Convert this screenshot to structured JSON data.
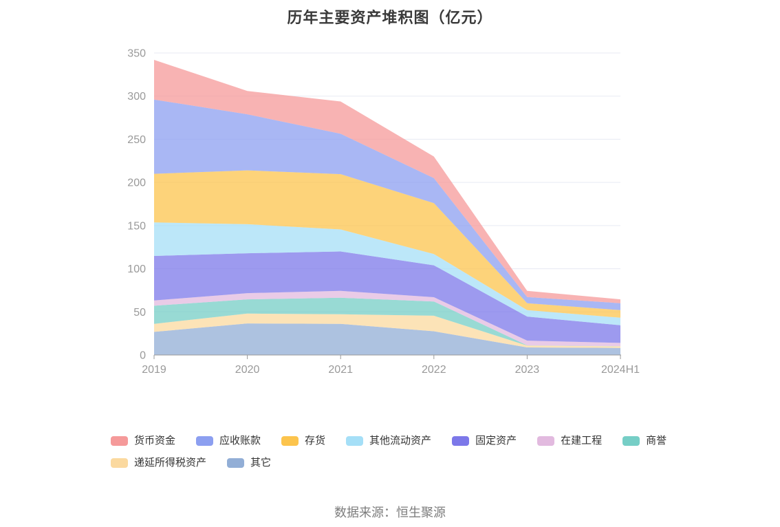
{
  "title": "历年主要资产堆积图（亿元）",
  "source_note": "数据来源：恒生聚源",
  "axis": {
    "y_min": 0,
    "y_max": 350,
    "y_interval": 50,
    "y_tick_labels": [
      "0",
      "50",
      "100",
      "150",
      "200",
      "250",
      "300",
      "350"
    ],
    "x_tick_labels": [
      "2019",
      "2020",
      "2021",
      "2022",
      "2023",
      "2024H1"
    ]
  },
  "colors": {
    "grid_line": "#e7eaf3",
    "axis_line": "#999999",
    "axis_label": "#999999",
    "title_text": "#3a3a3a",
    "legend_text": "#333333",
    "source_text": "#7d7d7d",
    "area_fill_opacity": 0.75
  },
  "chart_data": {
    "type": "area",
    "stacked": true,
    "title": "历年主要资产堆积图（亿元）",
    "x": [
      "2019",
      "2020",
      "2021",
      "2022",
      "2023",
      "2024H1"
    ],
    "xlabel": "",
    "ylabel": "",
    "ylim": [
      0,
      350
    ],
    "grid": true,
    "legend_position": "bottom",
    "series_order_note": "listed top-of-stack first; bottom of stack is last item",
    "series": [
      {
        "name": "货币资金",
        "slug": "monetary-funds",
        "color": "#f59a9a",
        "values": [
          46.0,
          27.0,
          37.4,
          25.0,
          7.2,
          4.5
        ]
      },
      {
        "name": "应收账款",
        "slug": "accounts-receivable",
        "color": "#8c9ff0",
        "values": [
          86.0,
          65.0,
          46.8,
          29.0,
          7.1,
          8.0
        ]
      },
      {
        "name": "存货",
        "slug": "inventory",
        "color": "#fcc44d",
        "values": [
          56.4,
          62.4,
          64.1,
          59.0,
          8.0,
          8.8
        ]
      },
      {
        "name": "其他流动资产",
        "slug": "other-current-assets",
        "color": "#a5dff7",
        "values": [
          38.8,
          33.7,
          25.5,
          13.0,
          7.4,
          8.7
        ]
      },
      {
        "name": "固定资产",
        "slug": "fixed-assets",
        "color": "#7c78e9",
        "values": [
          51.6,
          46.2,
          45.7,
          37.0,
          27.9,
          20.5
        ]
      },
      {
        "name": "在建工程",
        "slug": "construction-in-progress",
        "color": "#e2badf",
        "values": [
          6.1,
          7.2,
          8.0,
          5.0,
          5.5,
          3.7
        ]
      },
      {
        "name": "商誉",
        "slug": "goodwill",
        "color": "#76cec6",
        "values": [
          21.0,
          16.5,
          19.1,
          16.5,
          0.3,
          0.2
        ]
      },
      {
        "name": "递延所得税资产",
        "slug": "deferred-tax-assets",
        "color": "#fbd99f",
        "values": [
          9.3,
          11.4,
          11.1,
          18.0,
          2.1,
          1.9
        ]
      },
      {
        "name": "其它",
        "slug": "others",
        "color": "#92aed6",
        "values": [
          26.8,
          36.6,
          36.1,
          27.5,
          8.8,
          8.2
        ]
      }
    ],
    "totals_by_year": [
      342.0,
      306.0,
      293.8,
      230.0,
      74.3,
      64.5
    ]
  }
}
